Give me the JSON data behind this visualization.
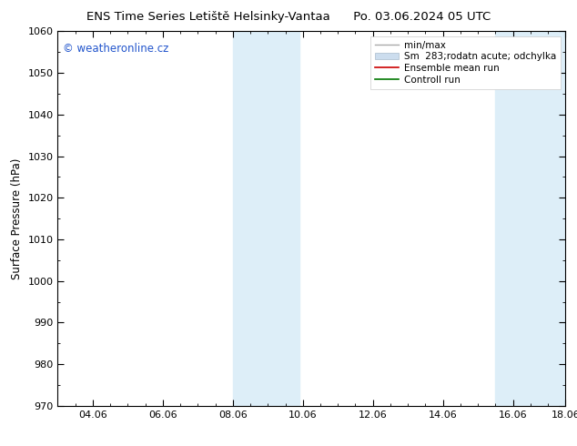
{
  "title_left": "ENS Time Series Letiště Helsinky-Vantaa",
  "title_right": "Po. 03.06.2024 05 UTC",
  "ylabel": "Surface Pressure (hPa)",
  "ylim": [
    970,
    1060
  ],
  "yticks": [
    970,
    980,
    990,
    1000,
    1010,
    1020,
    1030,
    1040,
    1050,
    1060
  ],
  "xlim_start": 0.0,
  "xlim_end": 14.5,
  "xtick_labels": [
    "04.06",
    "06.06",
    "08.06",
    "10.06",
    "12.06",
    "14.06",
    "16.06",
    "18.06"
  ],
  "xtick_positions": [
    1,
    3,
    5,
    7,
    9,
    11,
    13,
    14.5
  ],
  "shaded_bands": [
    {
      "x_start": 5.0,
      "x_end": 6.9,
      "color": "#ddeef8"
    },
    {
      "x_start": 12.5,
      "x_end": 14.5,
      "color": "#ddeef8"
    }
  ],
  "watermark_text": "© weatheronline.cz",
  "watermark_color": "#2255cc",
  "legend_labels": [
    "min/max",
    "Sm  283;rodatn acute; odchylka",
    "Ensemble mean run",
    "Controll run"
  ],
  "legend_colors_line": [
    "#aaaaaa",
    "#bbccd8",
    "#cc0000",
    "#007700"
  ],
  "bg_color": "#ffffff",
  "title_fontsize": 9.5,
  "axis_label_fontsize": 8.5,
  "tick_fontsize": 8,
  "legend_fontsize": 7.5,
  "watermark_fontsize": 8.5
}
